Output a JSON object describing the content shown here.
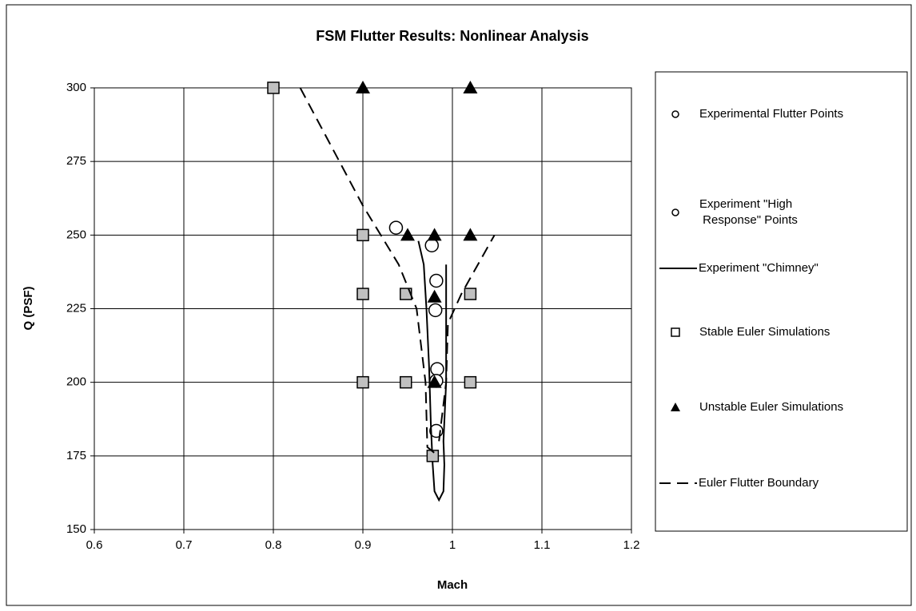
{
  "chart_data": {
    "type": "scatter",
    "title": "FSM Flutter Results:  Nonlinear Analysis",
    "x_label": "Mach",
    "y_label": "Q (PSF)",
    "xlim": [
      0.6,
      1.2
    ],
    "xticks": [
      0.6,
      0.7,
      0.8,
      0.9,
      1,
      1.1,
      1.2
    ],
    "ylim": [
      150,
      300
    ],
    "yticks": [
      150,
      175,
      200,
      225,
      250,
      275,
      300
    ],
    "grid": true,
    "legend": "right",
    "series": [
      {
        "name": "Experimental Flutter Points",
        "marker": "small-circle",
        "color": "#000000",
        "x": [],
        "values": []
      },
      {
        "name": "Experiment \"High Response\" Points",
        "marker": "circle",
        "color": "#000000",
        "x": [
          0.937,
          0.977,
          0.982,
          0.981,
          0.983,
          0.982,
          0.982
        ],
        "values": [
          252.5,
          246.5,
          234.5,
          224.5,
          204.5,
          200.5,
          183.5
        ]
      },
      {
        "name": "Experiment \"Chimney\"",
        "marker": "line",
        "color": "#000000",
        "x": [
          0.962,
          0.968,
          0.971,
          0.974,
          0.976,
          0.978,
          0.98,
          0.985,
          0.99,
          0.991,
          0.99,
          0.993,
          0.993,
          0.993
        ],
        "values": [
          248,
          240,
          225,
          205,
          185,
          172,
          163,
          160,
          163,
          172,
          180,
          200,
          220,
          240
        ]
      },
      {
        "name": "Stable Euler Simulations",
        "marker": "square",
        "color": "#c0c0c0",
        "x": [
          0.8,
          0.9,
          0.9,
          0.9,
          0.948,
          0.948,
          0.978,
          1.02,
          1.02
        ],
        "values": [
          300,
          250,
          230,
          200,
          230,
          200,
          175,
          230,
          200
        ]
      },
      {
        "name": "Unstable Euler Simulations",
        "marker": "triangle",
        "color": "#000000",
        "x": [
          0.9,
          1.02,
          0.95,
          0.98,
          1.02,
          0.98,
          0.98
        ],
        "values": [
          300,
          300,
          250,
          250,
          250,
          229,
          200
        ]
      },
      {
        "name": "Euler Flutter Boundary",
        "marker": "dashed",
        "color": "#000000",
        "x": [
          0.83,
          0.9,
          0.94,
          0.96,
          0.97,
          0.972,
          0.98,
          null,
          0.985,
          0.993,
          0.995,
          1.01,
          1.047
        ],
        "values": [
          300,
          260,
          240,
          225,
          200,
          178,
          176,
          null,
          180,
          200,
          220,
          230,
          250
        ]
      }
    ]
  }
}
